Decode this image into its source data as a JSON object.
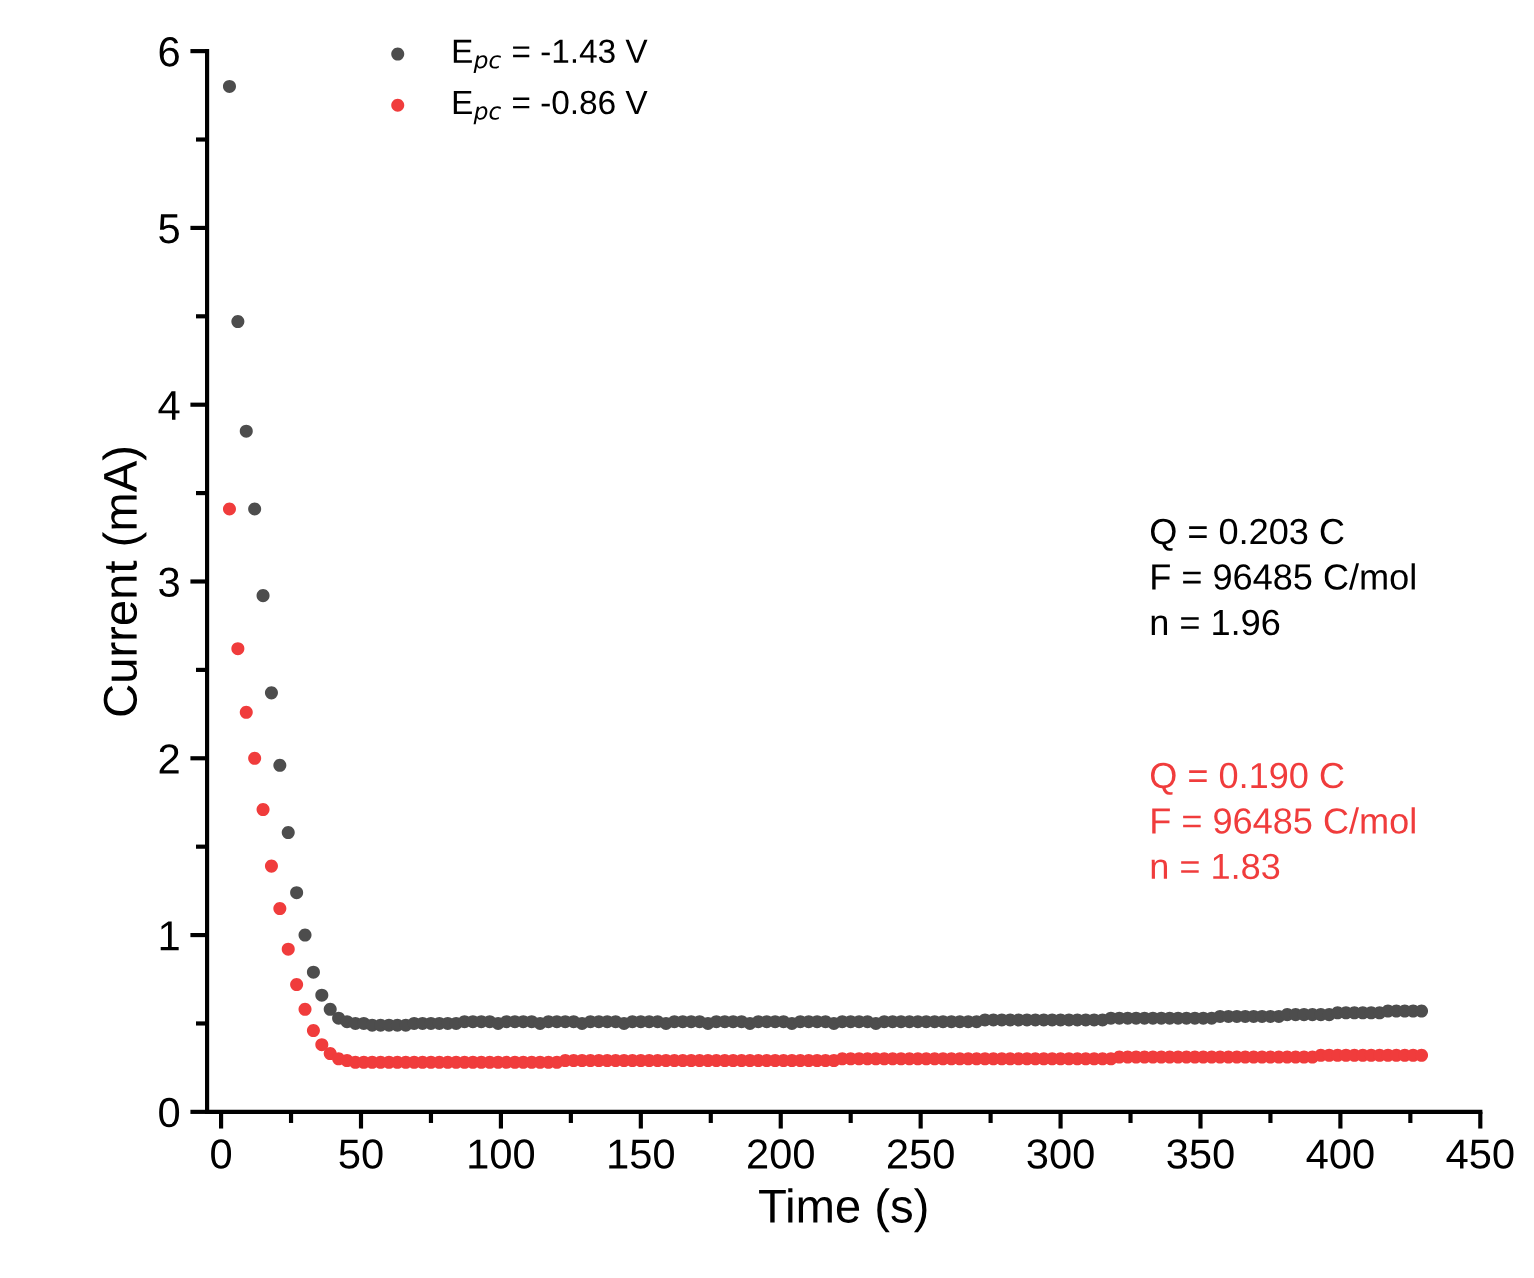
{
  "chart_data": {
    "type": "scatter",
    "xlabel": "Time (s)",
    "ylabel": "Current (mA)",
    "xlim": [
      -5,
      450
    ],
    "xticks": [
      0,
      50,
      100,
      150,
      200,
      250,
      300,
      350,
      400,
      450
    ],
    "ylim": [
      0,
      6
    ],
    "yticks": [
      0,
      1,
      2,
      3,
      4,
      5,
      6
    ],
    "grid": false,
    "legend": "top left",
    "marker": "circle",
    "x": [
      3,
      6,
      9,
      12,
      15,
      18,
      21,
      24,
      27,
      30,
      33,
      36,
      39,
      42,
      45,
      48,
      51,
      54,
      57,
      60,
      63,
      66,
      69,
      72,
      75,
      78,
      81,
      84,
      87,
      90,
      93,
      96,
      99,
      102,
      105,
      108,
      111,
      114,
      117,
      120,
      123,
      126,
      129,
      132,
      135,
      138,
      141,
      144,
      147,
      150,
      153,
      156,
      159,
      162,
      165,
      168,
      171,
      174,
      177,
      180,
      183,
      186,
      189,
      192,
      195,
      198,
      201,
      204,
      207,
      210,
      213,
      216,
      219,
      222,
      225,
      228,
      231,
      234,
      237,
      240,
      243,
      246,
      249,
      252,
      255,
      258,
      261,
      264,
      267,
      270,
      273,
      276,
      279,
      282,
      285,
      288,
      291,
      294,
      297,
      300,
      303,
      306,
      309,
      312,
      315,
      318,
      321,
      324,
      327,
      330,
      333,
      336,
      339,
      342,
      345,
      348,
      351,
      354,
      357,
      360,
      363,
      366,
      369,
      372,
      375,
      378,
      381,
      384,
      387,
      390,
      393,
      396,
      399,
      402,
      405,
      408,
      411,
      414,
      417,
      420,
      423,
      426,
      429
    ],
    "series": [
      {
        "name": "E$_{pc}$ = -1.43 V",
        "color": "#4d4d4d",
        "values": [
          5.8,
          4.47,
          3.85,
          3.41,
          2.92,
          2.37,
          1.96,
          1.58,
          1.24,
          1.0,
          0.79,
          0.66,
          0.58,
          0.53,
          0.51,
          0.5,
          0.5,
          0.49,
          0.49,
          0.49,
          0.49,
          0.49,
          0.5,
          0.5,
          0.5,
          0.5,
          0.5,
          0.5,
          0.51,
          0.51,
          0.51,
          0.51,
          0.5,
          0.51,
          0.51,
          0.51,
          0.51,
          0.5,
          0.51,
          0.51,
          0.51,
          0.51,
          0.5,
          0.51,
          0.51,
          0.51,
          0.51,
          0.5,
          0.51,
          0.51,
          0.51,
          0.51,
          0.5,
          0.51,
          0.51,
          0.51,
          0.51,
          0.5,
          0.51,
          0.51,
          0.51,
          0.51,
          0.5,
          0.51,
          0.51,
          0.51,
          0.51,
          0.5,
          0.51,
          0.51,
          0.51,
          0.51,
          0.5,
          0.51,
          0.51,
          0.51,
          0.51,
          0.5,
          0.51,
          0.51,
          0.51,
          0.51,
          0.51,
          0.51,
          0.51,
          0.51,
          0.51,
          0.51,
          0.51,
          0.51,
          0.52,
          0.52,
          0.52,
          0.52,
          0.52,
          0.52,
          0.52,
          0.52,
          0.52,
          0.52,
          0.52,
          0.52,
          0.52,
          0.52,
          0.52,
          0.53,
          0.53,
          0.53,
          0.53,
          0.53,
          0.53,
          0.53,
          0.53,
          0.53,
          0.53,
          0.53,
          0.53,
          0.53,
          0.54,
          0.54,
          0.54,
          0.54,
          0.54,
          0.54,
          0.54,
          0.54,
          0.55,
          0.55,
          0.55,
          0.55,
          0.55,
          0.55,
          0.56,
          0.56,
          0.56,
          0.56,
          0.56,
          0.56,
          0.57,
          0.57,
          0.57,
          0.57,
          0.57
        ]
      },
      {
        "name": "E$_{pc}$ = -0.86 V",
        "color": "#f03c3c",
        "values": [
          3.41,
          2.62,
          2.26,
          2.0,
          1.71,
          1.39,
          1.15,
          0.92,
          0.72,
          0.58,
          0.46,
          0.38,
          0.33,
          0.3,
          0.29,
          0.28,
          0.28,
          0.28,
          0.28,
          0.28,
          0.28,
          0.28,
          0.28,
          0.28,
          0.28,
          0.28,
          0.28,
          0.28,
          0.28,
          0.28,
          0.28,
          0.28,
          0.28,
          0.28,
          0.28,
          0.28,
          0.28,
          0.28,
          0.28,
          0.28,
          0.29,
          0.29,
          0.29,
          0.29,
          0.29,
          0.29,
          0.29,
          0.29,
          0.29,
          0.29,
          0.29,
          0.29,
          0.29,
          0.29,
          0.29,
          0.29,
          0.29,
          0.29,
          0.29,
          0.29,
          0.29,
          0.29,
          0.29,
          0.29,
          0.29,
          0.29,
          0.29,
          0.29,
          0.29,
          0.29,
          0.29,
          0.29,
          0.29,
          0.3,
          0.3,
          0.3,
          0.3,
          0.3,
          0.3,
          0.3,
          0.3,
          0.3,
          0.3,
          0.3,
          0.3,
          0.3,
          0.3,
          0.3,
          0.3,
          0.3,
          0.3,
          0.3,
          0.3,
          0.3,
          0.3,
          0.3,
          0.3,
          0.3,
          0.3,
          0.3,
          0.3,
          0.3,
          0.3,
          0.3,
          0.3,
          0.3,
          0.31,
          0.31,
          0.31,
          0.31,
          0.31,
          0.31,
          0.31,
          0.31,
          0.31,
          0.31,
          0.31,
          0.31,
          0.31,
          0.31,
          0.31,
          0.31,
          0.31,
          0.31,
          0.31,
          0.31,
          0.31,
          0.31,
          0.31,
          0.31,
          0.32,
          0.32,
          0.32,
          0.32,
          0.32,
          0.32,
          0.32,
          0.32,
          0.32,
          0.32,
          0.32,
          0.32,
          0.32
        ]
      }
    ],
    "annotations": [
      "Q = 0.203 C\nF = 96485 C/mol\nn = 1.96",
      "Q = 0.190 C\nF = 96485 C/mol\nn = 1.83"
    ]
  }
}
